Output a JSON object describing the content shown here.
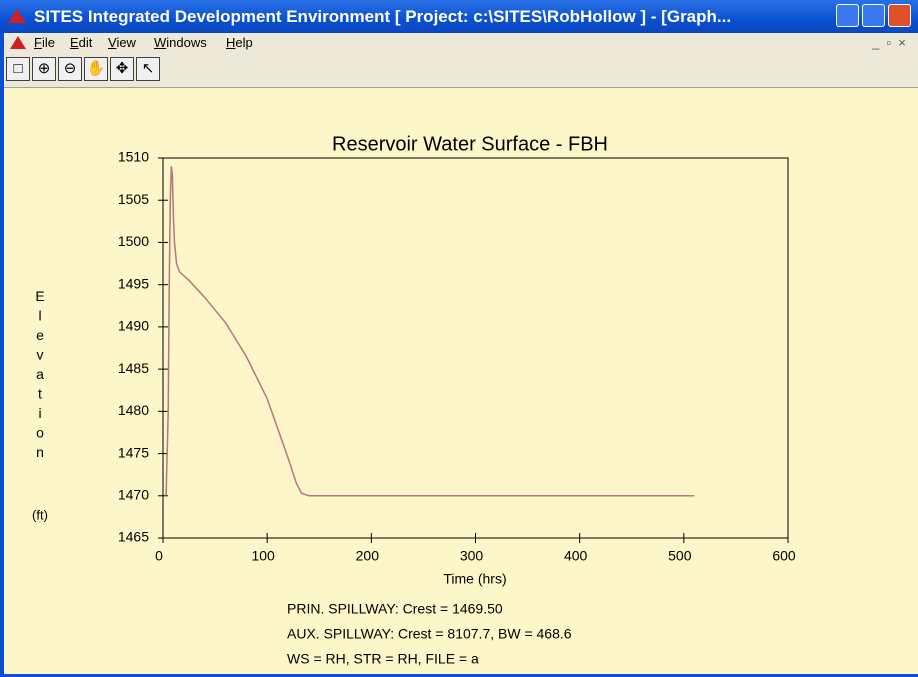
{
  "window": {
    "title": "SITES Integrated Development Environment [ Project: c:\\SITES\\RobHollow ]  - [Graph..."
  },
  "menu": [
    "File",
    "Edit",
    "View",
    "Windows",
    "Help"
  ],
  "chart_data": {
    "type": "line",
    "title": "Reservoir Water Surface - FBH",
    "xlabel": "Time (hrs)",
    "ylabel": "Elevation",
    "yunit": "(ft)",
    "annotations": [
      "PRIN. SPILLWAY:   Crest = 1469.50",
      "AUX. SPILLWAY:   Crest = 8107.7,   BW = 468.6",
      "WS = RH,   STR = RH,   FILE = a"
    ],
    "xlim": [
      0,
      600
    ],
    "xticks": [
      0,
      100,
      200,
      300,
      400,
      500,
      600
    ],
    "ylim": [
      1465,
      1510
    ],
    "yticks": [
      1465,
      1470,
      1475,
      1480,
      1485,
      1490,
      1495,
      1500,
      1505,
      1510
    ],
    "series": [
      {
        "color": "#b07880",
        "x": [
          3,
          5,
          6,
          7,
          8,
          9,
          10,
          11,
          13,
          16,
          25,
          40,
          60,
          80,
          100,
          110,
          120,
          128,
          133,
          140,
          200,
          300,
          400,
          510
        ],
        "values": [
          1470,
          1480,
          1495,
          1505,
          1509,
          1508,
          1503,
          1500,
          1497.5,
          1496.5,
          1495.5,
          1493.5,
          1490.5,
          1486.5,
          1481.5,
          1478,
          1474.5,
          1471.5,
          1470.3,
          1470,
          1470,
          1470,
          1470,
          1470
        ]
      }
    ]
  }
}
